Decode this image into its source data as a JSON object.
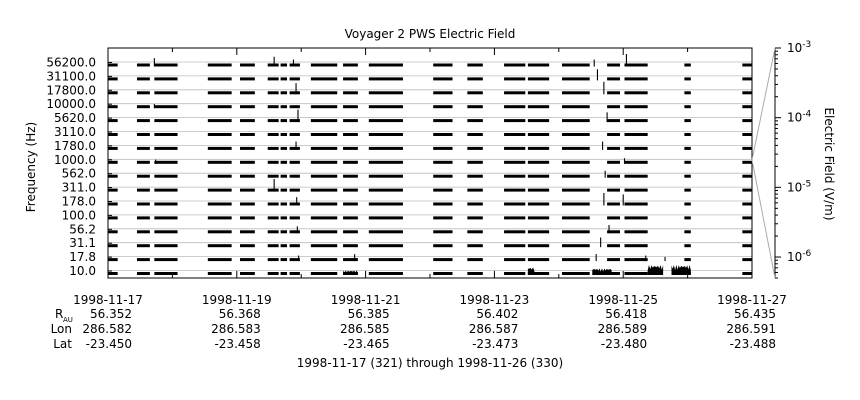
{
  "chart_data": {
    "type": "line",
    "title": "Voyager 2 PWS Electric Field",
    "ylabel": "Frequency (Hz)",
    "right_axis_label": "Electric Field (V/m)",
    "channels": [
      "10.0",
      "17.8",
      "31.1",
      "56.2",
      "100.0",
      "178.0",
      "311.0",
      "562.0",
      "1000.0",
      "1780.0",
      "3110.0",
      "5620.0",
      "10000.0",
      "17800.0",
      "31100.0",
      "56200.0"
    ],
    "x_range": [
      "1998-11-17",
      "1998-11-27"
    ],
    "x_ticks": [
      "1998-11-17",
      "1998-11-19",
      "1998-11-21",
      "1998-11-23",
      "1998-11-25",
      "1998-11-27"
    ],
    "right_axis": {
      "scale": "log",
      "range": [
        5e-07,
        0.001
      ],
      "tick_labels": [
        {
          "base": "10",
          "exp": "-3",
          "value": 0.001
        },
        {
          "base": "10",
          "exp": "-4",
          "value": 0.0001
        },
        {
          "base": "10",
          "exp": "-5",
          "value": 1e-05
        },
        {
          "base": "10",
          "exp": "-6",
          "value": 1e-06
        }
      ]
    },
    "data_segments_days": [
      [
        0.0,
        0.15
      ],
      [
        0.45,
        0.65
      ],
      [
        0.72,
        1.08
      ],
      [
        1.55,
        1.92
      ],
      [
        2.05,
        2.28
      ],
      [
        2.48,
        2.65
      ],
      [
        2.68,
        2.78
      ],
      [
        2.82,
        2.98
      ],
      [
        3.15,
        3.56
      ],
      [
        3.65,
        3.88
      ],
      [
        4.05,
        4.58
      ],
      [
        5.05,
        5.35
      ],
      [
        5.58,
        5.82
      ],
      [
        6.15,
        6.48
      ],
      [
        6.52,
        6.85
      ],
      [
        7.05,
        7.48
      ],
      [
        7.75,
        7.95
      ],
      [
        8.02,
        8.38
      ],
      [
        8.95,
        9.05
      ],
      [
        9.85,
        10.0
      ]
    ],
    "bursts": [
      {
        "day": 0.72,
        "channel": 15,
        "level": 0.6
      },
      {
        "day": 0.72,
        "channel": 12,
        "level": 0.3
      },
      {
        "day": 0.74,
        "channel": 8,
        "level": 0.3
      },
      {
        "day": 2.58,
        "channel": 15,
        "level": 0.7
      },
      {
        "day": 2.58,
        "channel": 6,
        "level": 0.9
      },
      {
        "day": 2.88,
        "channel": 15,
        "level": 0.5
      },
      {
        "day": 2.92,
        "channel": 13,
        "level": 0.8
      },
      {
        "day": 2.95,
        "channel": 11,
        "level": 0.9
      },
      {
        "day": 2.92,
        "channel": 9,
        "level": 0.6
      },
      {
        "day": 2.93,
        "channel": 5,
        "level": 0.6
      },
      {
        "day": 2.94,
        "channel": 3,
        "level": 0.5
      },
      {
        "day": 2.96,
        "channel": 1,
        "level": 0.4
      },
      {
        "day": 3.82,
        "channel": 8,
        "level": 0.2
      },
      {
        "day": 3.83,
        "channel": 1,
        "level": 0.5
      },
      {
        "day": 7.55,
        "channel": 15,
        "level": 0.5
      },
      {
        "day": 7.6,
        "channel": 14,
        "level": 0.8
      },
      {
        "day": 7.7,
        "channel": 13,
        "level": 0.9
      },
      {
        "day": 7.75,
        "channel": 11,
        "level": 0.7
      },
      {
        "day": 7.68,
        "channel": 9,
        "level": 0.6
      },
      {
        "day": 7.72,
        "channel": 7,
        "level": 0.5
      },
      {
        "day": 7.7,
        "channel": 5,
        "level": 0.9
      },
      {
        "day": 7.78,
        "channel": 3,
        "level": 0.6
      },
      {
        "day": 7.65,
        "channel": 2,
        "level": 0.7
      },
      {
        "day": 7.58,
        "channel": 1,
        "level": 0.5
      },
      {
        "day": 8.05,
        "channel": 15,
        "level": 0.9
      },
      {
        "day": 8.02,
        "channel": 8,
        "level": 0.4
      },
      {
        "day": 8.0,
        "channel": 5,
        "level": 0.8
      },
      {
        "day": 8.35,
        "channel": 1,
        "level": 0.4
      },
      {
        "day": 8.65,
        "channel": 1,
        "level": 0.3
      }
    ],
    "dense_regions": [
      {
        "start": 7.52,
        "end": 7.82,
        "channel": 0,
        "level": 0.6
      },
      {
        "start": 8.38,
        "end": 8.62,
        "channel": 0,
        "level": 0.9
      },
      {
        "start": 8.75,
        "end": 9.05,
        "channel": 0,
        "level": 0.9
      },
      {
        "start": 6.52,
        "end": 6.62,
        "channel": 0,
        "level": 0.7
      },
      {
        "start": 3.65,
        "end": 3.88,
        "channel": 0,
        "level": 0.4
      }
    ]
  },
  "ephemeris": {
    "rows": [
      {
        "label": "R",
        "sub": "AU",
        "values": [
          "56.352",
          "56.368",
          "56.385",
          "56.402",
          "56.418",
          "56.435"
        ]
      },
      {
        "label": "Lon",
        "sub": "",
        "values": [
          "286.582",
          "286.583",
          "286.585",
          "286.587",
          "286.589",
          "286.591"
        ]
      },
      {
        "label": "Lat",
        "sub": "",
        "values": [
          "-23.450",
          "-23.458",
          "-23.465",
          "-23.473",
          "-23.480",
          "-23.488"
        ]
      }
    ]
  },
  "date_range_caption": "1998-11-17 (321) through 1998-11-26 (330)"
}
